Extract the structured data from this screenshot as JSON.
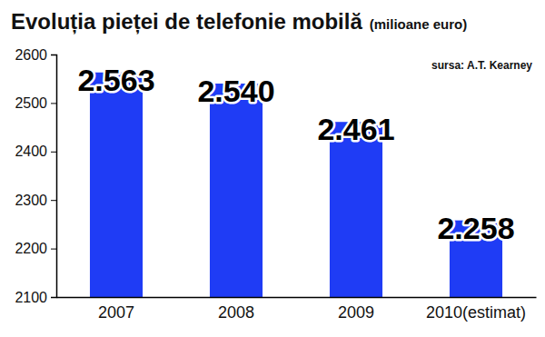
{
  "chart_data": {
    "type": "bar",
    "title": "Evoluția pieței de telefonie mobilă",
    "subtitle": "(milioane euro)",
    "source": "sursa: A.T. Kearney",
    "categories": [
      "2007",
      "2008",
      "2009",
      "2010(estimat)"
    ],
    "values": [
      2563,
      2540,
      2461,
      2258
    ],
    "value_labels": [
      "2.563",
      "2.540",
      "2.461",
      "2.258"
    ],
    "color": "#1f3cf5",
    "ylim": [
      2100,
      2600
    ],
    "yticks": [
      2100,
      2200,
      2300,
      2400,
      2500,
      2600
    ],
    "grid": false,
    "data_labels": true
  }
}
